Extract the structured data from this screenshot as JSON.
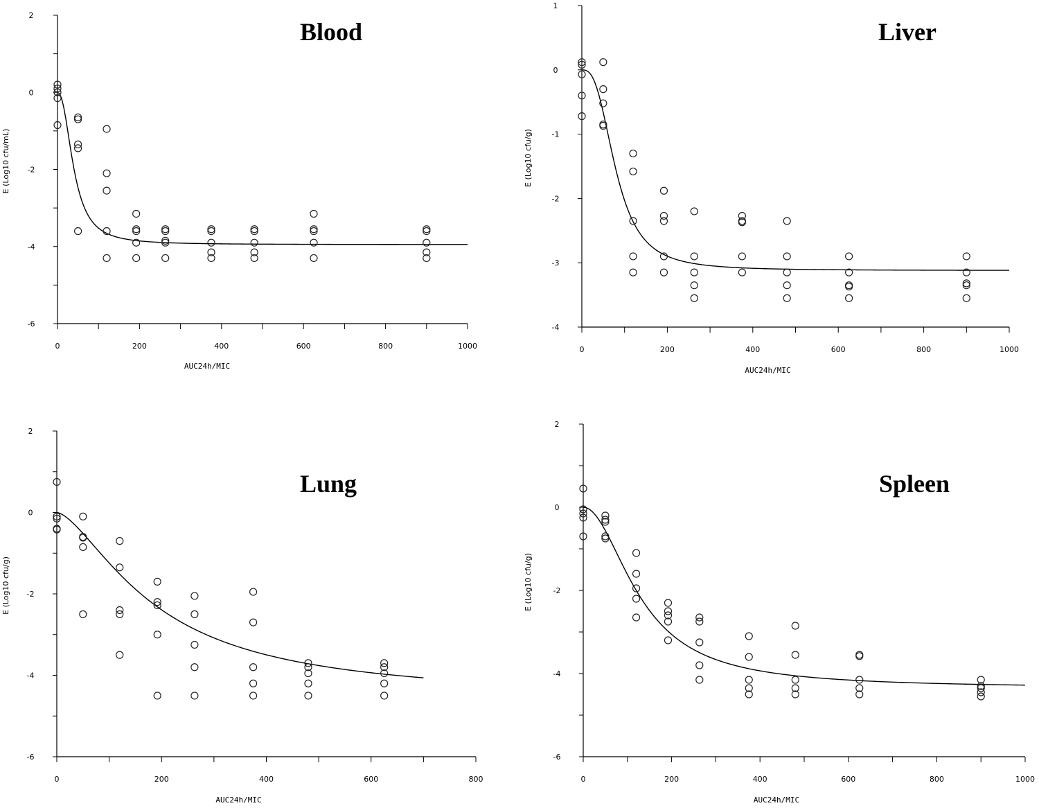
{
  "chart_data": [
    {
      "type": "scatter",
      "title": "Blood",
      "xlabel": "AUC24h/MIC",
      "ylabel": "E (Log10 cfu/mL)",
      "xlim": [
        0,
        1000
      ],
      "ylim": [
        -6,
        2
      ],
      "x_ticks": [
        0,
        200,
        400,
        600,
        800,
        1000
      ],
      "y_ticks": [
        -6,
        -4,
        -2,
        0,
        2
      ],
      "points": [
        [
          0,
          0.2
        ],
        [
          0,
          0.1
        ],
        [
          0,
          0
        ],
        [
          0,
          -0.15
        ],
        [
          0,
          -0.85
        ],
        [
          50,
          -0.65
        ],
        [
          50,
          -0.7
        ],
        [
          50,
          -1.35
        ],
        [
          50,
          -1.45
        ],
        [
          50,
          -3.6
        ],
        [
          120,
          -0.95
        ],
        [
          120,
          -2.1
        ],
        [
          120,
          -2.55
        ],
        [
          120,
          -3.6
        ],
        [
          120,
          -4.3
        ],
        [
          192,
          -3.15
        ],
        [
          192,
          -3.55
        ],
        [
          192,
          -3.6
        ],
        [
          192,
          -3.9
        ],
        [
          192,
          -4.3
        ],
        [
          263,
          -3.55
        ],
        [
          263,
          -3.6
        ],
        [
          263,
          -3.85
        ],
        [
          263,
          -3.9
        ],
        [
          263,
          -4.3
        ],
        [
          375,
          -3.55
        ],
        [
          375,
          -3.6
        ],
        [
          375,
          -3.9
        ],
        [
          375,
          -4.15
        ],
        [
          375,
          -4.3
        ],
        [
          480,
          -3.55
        ],
        [
          480,
          -3.6
        ],
        [
          480,
          -3.9
        ],
        [
          480,
          -4.15
        ],
        [
          480,
          -4.3
        ],
        [
          625,
          -3.15
        ],
        [
          625,
          -3.55
        ],
        [
          625,
          -3.6
        ],
        [
          625,
          -3.9
        ],
        [
          625,
          -4.3
        ],
        [
          900,
          -3.55
        ],
        [
          900,
          -3.6
        ],
        [
          900,
          -3.9
        ],
        [
          900,
          -4.15
        ],
        [
          900,
          -4.3
        ]
      ],
      "fit": {
        "emax": 3.95,
        "ec50": 40,
        "hill": 2.3,
        "x_end": 1000
      }
    },
    {
      "type": "scatter",
      "title": "Liver",
      "xlabel": "AUC24h/MIC",
      "ylabel": "E (Log10 cfu/g)",
      "xlim": [
        0,
        1000
      ],
      "ylim": [
        -4,
        1
      ],
      "x_ticks": [
        0,
        200,
        400,
        600,
        800,
        1000
      ],
      "y_ticks": [
        -4,
        -3,
        -2,
        -1,
        0,
        1
      ],
      "points": [
        [
          0,
          0.12
        ],
        [
          0,
          0.08
        ],
        [
          0,
          -0.07
        ],
        [
          0,
          -0.4
        ],
        [
          0,
          -0.72
        ],
        [
          50,
          0.12
        ],
        [
          50,
          -0.3
        ],
        [
          50,
          -0.52
        ],
        [
          50,
          -0.85
        ],
        [
          50,
          -0.87
        ],
        [
          120,
          -1.3
        ],
        [
          120,
          -1.58
        ],
        [
          120,
          -2.35
        ],
        [
          120,
          -2.9
        ],
        [
          120,
          -3.15
        ],
        [
          192,
          -1.88
        ],
        [
          192,
          -2.27
        ],
        [
          192,
          -2.35
        ],
        [
          192,
          -2.9
        ],
        [
          192,
          -3.15
        ],
        [
          263,
          -2.2
        ],
        [
          263,
          -2.9
        ],
        [
          263,
          -3.15
        ],
        [
          263,
          -3.35
        ],
        [
          263,
          -3.55
        ],
        [
          375,
          -2.27
        ],
        [
          375,
          -2.35
        ],
        [
          375,
          -2.37
        ],
        [
          375,
          -2.9
        ],
        [
          375,
          -3.15
        ],
        [
          480,
          -2.35
        ],
        [
          480,
          -2.9
        ],
        [
          480,
          -3.15
        ],
        [
          480,
          -3.35
        ],
        [
          480,
          -3.55
        ],
        [
          625,
          -2.9
        ],
        [
          625,
          -3.15
        ],
        [
          625,
          -3.35
        ],
        [
          625,
          -3.37
        ],
        [
          625,
          -3.55
        ],
        [
          900,
          -2.9
        ],
        [
          900,
          -3.15
        ],
        [
          900,
          -3.32
        ],
        [
          900,
          -3.35
        ],
        [
          900,
          -3.55
        ]
      ],
      "fit": {
        "emax": 3.12,
        "ec50": 80,
        "hill": 2.8,
        "x_end": 1000
      }
    },
    {
      "type": "scatter",
      "title": "Lung",
      "xlabel": "AUC24h/MIC",
      "ylabel": "E (Log10 cfu/g)",
      "xlim": [
        0,
        800
      ],
      "ylim": [
        -6,
        2
      ],
      "x_ticks": [
        0,
        200,
        400,
        600,
        800
      ],
      "y_ticks": [
        -6,
        -4,
        -2,
        0,
        2
      ],
      "points": [
        [
          0,
          0.75
        ],
        [
          0,
          -0.1
        ],
        [
          0,
          -0.15
        ],
        [
          0,
          -0.4
        ],
        [
          0,
          -0.42
        ],
        [
          50,
          -0.1
        ],
        [
          50,
          -0.6
        ],
        [
          50,
          -0.62
        ],
        [
          50,
          -0.85
        ],
        [
          50,
          -2.5
        ],
        [
          120,
          -0.7
        ],
        [
          120,
          -1.35
        ],
        [
          120,
          -2.4
        ],
        [
          120,
          -2.5
        ],
        [
          120,
          -3.5
        ],
        [
          192,
          -1.7
        ],
        [
          192,
          -2.2
        ],
        [
          192,
          -2.28
        ],
        [
          192,
          -3.0
        ],
        [
          192,
          -4.5
        ],
        [
          263,
          -2.05
        ],
        [
          263,
          -2.5
        ],
        [
          263,
          -3.25
        ],
        [
          263,
          -3.8
        ],
        [
          263,
          -4.5
        ],
        [
          375,
          -1.95
        ],
        [
          375,
          -2.7
        ],
        [
          375,
          -3.8
        ],
        [
          375,
          -4.2
        ],
        [
          375,
          -4.5
        ],
        [
          480,
          -3.7
        ],
        [
          480,
          -3.8
        ],
        [
          480,
          -3.95
        ],
        [
          480,
          -4.2
        ],
        [
          480,
          -4.5
        ],
        [
          625,
          -3.7
        ],
        [
          625,
          -3.8
        ],
        [
          625,
          -3.95
        ],
        [
          625,
          -4.2
        ],
        [
          625,
          -4.5
        ]
      ],
      "fit": {
        "emax": 4.6,
        "ec50": 190,
        "hill": 1.55,
        "x_end": 700
      }
    },
    {
      "type": "scatter",
      "title": "Spleen",
      "xlabel": "AUC24h/MIC",
      "ylabel": "E (Log10 cfu/g)",
      "xlim": [
        0,
        1000
      ],
      "ylim": [
        -6,
        2
      ],
      "x_ticks": [
        0,
        200,
        400,
        600,
        800,
        1000
      ],
      "y_ticks": [
        -6,
        -4,
        -2,
        0,
        2
      ],
      "points": [
        [
          0,
          0.45
        ],
        [
          0,
          -0.05
        ],
        [
          0,
          -0.15
        ],
        [
          0,
          -0.25
        ],
        [
          0,
          -0.7
        ],
        [
          50,
          -0.2
        ],
        [
          50,
          -0.3
        ],
        [
          50,
          -0.35
        ],
        [
          50,
          -0.7
        ],
        [
          50,
          -0.75
        ],
        [
          120,
          -1.1
        ],
        [
          120,
          -1.6
        ],
        [
          120,
          -1.95
        ],
        [
          120,
          -2.2
        ],
        [
          120,
          -2.65
        ],
        [
          192,
          -2.3
        ],
        [
          192,
          -2.5
        ],
        [
          192,
          -2.6
        ],
        [
          192,
          -2.75
        ],
        [
          192,
          -3.2
        ],
        [
          263,
          -2.65
        ],
        [
          263,
          -2.75
        ],
        [
          263,
          -3.25
        ],
        [
          263,
          -3.8
        ],
        [
          263,
          -4.15
        ],
        [
          375,
          -3.1
        ],
        [
          375,
          -3.6
        ],
        [
          375,
          -4.15
        ],
        [
          375,
          -4.35
        ],
        [
          375,
          -4.5
        ],
        [
          480,
          -2.85
        ],
        [
          480,
          -3.55
        ],
        [
          480,
          -4.15
        ],
        [
          480,
          -4.35
        ],
        [
          480,
          -4.5
        ],
        [
          625,
          -3.55
        ],
        [
          625,
          -3.58
        ],
        [
          625,
          -4.15
        ],
        [
          625,
          -4.35
        ],
        [
          625,
          -4.5
        ],
        [
          900,
          -4.15
        ],
        [
          900,
          -4.3
        ],
        [
          900,
          -4.35
        ],
        [
          900,
          -4.45
        ],
        [
          900,
          -4.55
        ]
      ],
      "fit": {
        "emax": 4.35,
        "ec50": 130,
        "hill": 2.0,
        "x_end": 1000
      }
    }
  ]
}
